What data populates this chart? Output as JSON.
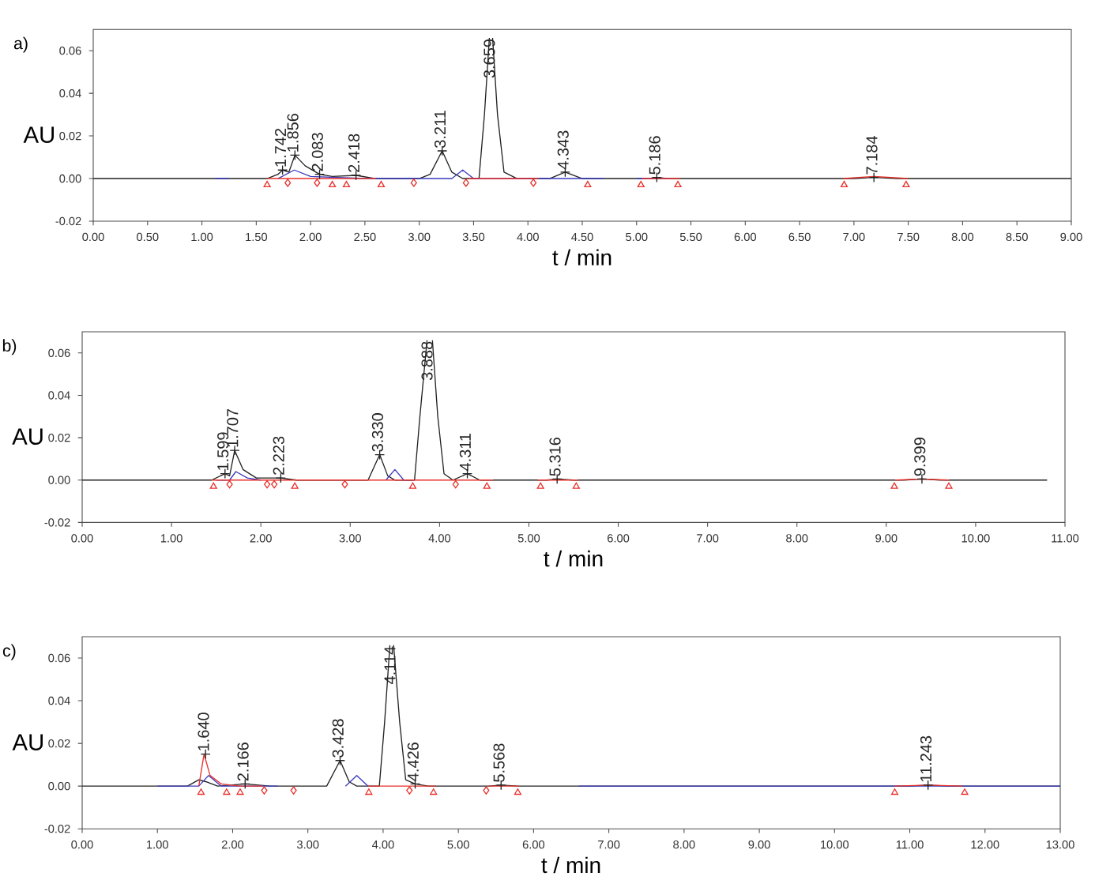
{
  "chart_data": [
    {
      "type": "line",
      "title": "a)",
      "xlabel": "t / min",
      "ylabel": "AU",
      "xlim": [
        0,
        9
      ],
      "ylim": [
        -0.02,
        0.07
      ],
      "xticks": [
        {
          "value": 0,
          "label": "0.00"
        },
        {
          "value": 0.5,
          "label": "0.50"
        },
        {
          "value": 1,
          "label": "1.00"
        },
        {
          "value": 1.5,
          "label": "1.50"
        },
        {
          "value": 2,
          "label": "2.00"
        },
        {
          "value": 2.5,
          "label": "2.50"
        },
        {
          "value": 3,
          "label": "3.00"
        },
        {
          "value": 3.5,
          "label": "3.50"
        },
        {
          "value": 4,
          "label": "4.00"
        },
        {
          "value": 4.5,
          "label": "4.50"
        },
        {
          "value": 5,
          "label": "5.00"
        },
        {
          "value": 5.5,
          "label": "5.50"
        },
        {
          "value": 6,
          "label": "6.00"
        },
        {
          "value": 6.5,
          "label": "6.50"
        },
        {
          "value": 7,
          "label": "7.00"
        },
        {
          "value": 7.5,
          "label": "7.50"
        },
        {
          "value": 8,
          "label": "8.00"
        },
        {
          "value": 8.5,
          "label": "8.50"
        },
        {
          "value": 9,
          "label": "9.00"
        }
      ],
      "yticks": [
        {
          "value": -0.02,
          "label": "-0.02"
        },
        {
          "value": 0,
          "label": "0.00"
        },
        {
          "value": 0.02,
          "label": "0.02"
        },
        {
          "value": 0.04,
          "label": "0.04"
        },
        {
          "value": 0.06,
          "label": "0.06"
        }
      ],
      "series": [
        {
          "color": "#222222",
          "x": [
            0,
            1.6,
            1.7,
            1.742,
            1.8,
            1.856,
            1.95,
            2.083,
            2.2,
            2.418,
            2.6,
            3.0,
            3.1,
            3.211,
            3.3,
            3.4,
            3.55,
            3.6,
            3.645,
            3.66,
            3.675,
            3.72,
            3.78,
            3.9,
            4.2,
            4.343,
            4.5,
            5.1,
            5.186,
            5.3,
            7.0,
            7.184,
            7.4,
            9
          ],
          "values": [
            0,
            0,
            0.002,
            0.004,
            0.003,
            0.011,
            0.006,
            0.002,
            0.001,
            0.0015,
            0,
            0,
            0.002,
            0.013,
            0.003,
            0,
            0,
            0.03,
            0.066,
            null,
            0.066,
            0.03,
            0.003,
            0,
            0,
            0.003,
            0,
            0,
            0.0005,
            0,
            0,
            0.0005,
            0,
            0
          ]
        },
        {
          "color": "#3b3bbf",
          "x": [
            1.12,
            1.25,
            1.26,
            1.7,
            1.85,
            2.0,
            2.5,
            2.7,
            3.3,
            3.4,
            3.5,
            4.2,
            4.7,
            4.71,
            5.0,
            5.3
          ],
          "values": [
            0,
            0,
            null,
            0,
            0.004,
            0.001,
            0,
            0,
            0,
            0.004,
            0,
            0,
            0,
            null,
            0,
            0
          ]
        },
        {
          "color": "#e8302a",
          "x": [
            1.6,
            2.6,
            2.61,
            3.45,
            4.1,
            4.11,
            5.05,
            5.4,
            5.41,
            6.9,
            7.184,
            7.5
          ],
          "values": [
            0,
            0,
            null,
            0,
            0,
            null,
            0,
            0,
            null,
            0,
            0.001,
            0
          ]
        },
        {
          "type": "scatter",
          "marker": "triangle",
          "color": "#e8302a",
          "x": [
            1.6,
            2.2,
            2.33,
            2.65,
            4.55,
            5.04,
            5.38,
            6.91,
            7.48
          ],
          "values": [
            -0.003,
            -0.003,
            -0.003,
            -0.003,
            -0.003,
            -0.003,
            -0.003,
            -0.003,
            -0.003
          ]
        },
        {
          "type": "scatter",
          "marker": "diamond",
          "color": "#e8302a",
          "x": [
            1.79,
            2.06,
            2.95,
            3.43,
            4.05
          ],
          "values": [
            -0.002,
            -0.002,
            -0.002,
            -0.002,
            -0.002
          ]
        },
        {
          "type": "scatter",
          "marker": "cross",
          "color": "#222222",
          "x": [
            1.742,
            1.856,
            2.083,
            2.418,
            3.211,
            4.343,
            5.186,
            7.184
          ],
          "values": [
            0.004,
            0.011,
            0.002,
            0.0015,
            0.013,
            0.003,
            0.0005,
            0.0005
          ]
        }
      ],
      "annotations": [
        {
          "text": "1.742",
          "x": 1.742,
          "y": 0.004
        },
        {
          "text": "1.856",
          "x": 1.856,
          "y": 0.011
        },
        {
          "text": "2.083",
          "x": 2.083,
          "y": 0.002
        },
        {
          "text": "2.418",
          "x": 2.418,
          "y": 0.0015
        },
        {
          "text": "3.211",
          "x": 3.211,
          "y": 0.013
        },
        {
          "text": "3.659",
          "x": 3.645,
          "y": 0.066
        },
        {
          "text": "4.343",
          "x": 4.343,
          "y": 0.003
        },
        {
          "text": "5.186",
          "x": 5.186,
          "y": 0.0005
        },
        {
          "text": "7.184",
          "x": 7.184,
          "y": 0.0005
        }
      ]
    },
    {
      "type": "line",
      "title": "b)",
      "xlabel": "t / min",
      "ylabel": "AU",
      "xlim": [
        0,
        11
      ],
      "ylim": [
        -0.02,
        0.07
      ],
      "xticks": [
        {
          "value": 0,
          "label": "0.00"
        },
        {
          "value": 1,
          "label": "1.00"
        },
        {
          "value": 2,
          "label": "2.00"
        },
        {
          "value": 3,
          "label": "3.00"
        },
        {
          "value": 4,
          "label": "4.00"
        },
        {
          "value": 5,
          "label": "5.00"
        },
        {
          "value": 6,
          "label": "6.00"
        },
        {
          "value": 7,
          "label": "7.00"
        },
        {
          "value": 8,
          "label": "8.00"
        },
        {
          "value": 9,
          "label": "9.00"
        },
        {
          "value": 10,
          "label": "10.00"
        },
        {
          "value": 11,
          "label": "11.00"
        }
      ],
      "yticks": [
        {
          "value": -0.02,
          "label": "-0.02"
        },
        {
          "value": 0,
          "label": "0.00"
        },
        {
          "value": 0.02,
          "label": "0.02"
        },
        {
          "value": 0.04,
          "label": "0.04"
        },
        {
          "value": 0.06,
          "label": "0.06"
        }
      ],
      "series": [
        {
          "color": "#222222",
          "x": [
            0,
            1.45,
            1.599,
            1.65,
            1.707,
            1.8,
            1.95,
            2.223,
            2.4,
            3.2,
            3.33,
            3.42,
            3.5,
            3.72,
            3.78,
            3.86,
            3.888,
            3.92,
            3.98,
            4.05,
            4.15,
            4.311,
            4.45,
            5.2,
            5.316,
            5.5,
            9.2,
            9.399,
            9.6,
            10.8
          ],
          "values": [
            0,
            0,
            0.003,
            0.002,
            0.014,
            0.005,
            0.001,
            0.001,
            0,
            0,
            0.012,
            0.002,
            0,
            0,
            0.03,
            0.066,
            null,
            0.066,
            0.03,
            0.003,
            0,
            0.003,
            0,
            0,
            0.0005,
            0,
            0,
            0.0005,
            0,
            0
          ]
        },
        {
          "color": "#3b3bbf",
          "x": [
            1.5,
            1.65,
            1.72,
            1.85,
            2.0,
            2.01,
            3.4,
            3.5,
            3.6,
            3.7
          ],
          "values": [
            0,
            0,
            0.004,
            0.001,
            0,
            null,
            0,
            0.005,
            0,
            0
          ]
        },
        {
          "color": "#e8302a",
          "x": [
            1.45,
            4.6,
            4.61,
            5.1,
            5.55,
            5.56,
            9.1,
            9.399,
            9.7
          ],
          "values": [
            0,
            0,
            null,
            0,
            0,
            null,
            0,
            0.0005,
            0
          ]
        },
        {
          "type": "scatter",
          "marker": "triangle",
          "color": "#e8302a",
          "x": [
            1.47,
            2.38,
            3.7,
            4.53,
            5.13,
            5.53,
            9.09,
            9.7
          ],
          "values": [
            -0.003,
            -0.003,
            -0.003,
            -0.003,
            -0.003,
            -0.003,
            -0.003,
            -0.003
          ]
        },
        {
          "type": "scatter",
          "marker": "diamond",
          "color": "#e8302a",
          "x": [
            1.65,
            2.07,
            2.15,
            2.94,
            4.18
          ],
          "values": [
            -0.002,
            -0.002,
            -0.002,
            -0.002,
            -0.002
          ]
        },
        {
          "type": "scatter",
          "marker": "cross",
          "color": "#222222",
          "x": [
            1.599,
            1.707,
            2.223,
            3.33,
            4.311,
            5.316,
            9.399
          ],
          "values": [
            0.003,
            0.014,
            0.001,
            0.012,
            0.003,
            0.0005,
            0.0005
          ]
        }
      ],
      "annotations": [
        {
          "text": "1.599",
          "x": 1.599,
          "y": 0.003
        },
        {
          "text": "1.707",
          "x": 1.707,
          "y": 0.014
        },
        {
          "text": "2.223",
          "x": 2.223,
          "y": 0.001
        },
        {
          "text": "3.330",
          "x": 3.33,
          "y": 0.012
        },
        {
          "text": "3.888",
          "x": 3.86,
          "y": 0.066
        },
        {
          "text": "4.311",
          "x": 4.311,
          "y": 0.003
        },
        {
          "text": "5.316",
          "x": 5.316,
          "y": 0.0005
        },
        {
          "text": "9.399",
          "x": 9.399,
          "y": 0.0005
        }
      ]
    },
    {
      "type": "line",
      "title": "c)",
      "xlabel": "t / min",
      "ylabel": "AU",
      "xlim": [
        0,
        13
      ],
      "ylim": [
        -0.02,
        0.07
      ],
      "xticks": [
        {
          "value": 0,
          "label": "0.00"
        },
        {
          "value": 1,
          "label": "1.00"
        },
        {
          "value": 2,
          "label": "2.00"
        },
        {
          "value": 3,
          "label": "3.00"
        },
        {
          "value": 4,
          "label": "4.00"
        },
        {
          "value": 5,
          "label": "5.00"
        },
        {
          "value": 6,
          "label": "6.00"
        },
        {
          "value": 7,
          "label": "7.00"
        },
        {
          "value": 8,
          "label": "8.00"
        },
        {
          "value": 9,
          "label": "9.00"
        },
        {
          "value": 10,
          "label": "10.00"
        },
        {
          "value": 11,
          "label": "11.00"
        },
        {
          "value": 12,
          "label": "12.00"
        },
        {
          "value": 13,
          "label": "13.00"
        }
      ],
      "yticks": [
        {
          "value": -0.02,
          "label": "-0.02"
        },
        {
          "value": 0,
          "label": "0.00"
        },
        {
          "value": 0.02,
          "label": "0.02"
        },
        {
          "value": 0.04,
          "label": "0.04"
        },
        {
          "value": 0.06,
          "label": "0.06"
        }
      ],
      "series": [
        {
          "color": "#222222",
          "x": [
            0,
            1.4,
            1.55,
            1.65,
            1.8,
            2.166,
            2.5,
            3.25,
            3.428,
            3.55,
            3.65,
            3.95,
            4.02,
            4.09,
            4.115,
            4.14,
            4.22,
            4.3,
            4.426,
            4.6,
            5.4,
            5.568,
            5.8,
            11.0,
            11.243,
            11.5,
            13
          ],
          "values": [
            0,
            0,
            0.003,
            0.002,
            0,
            0.001,
            0,
            0,
            0.012,
            0.002,
            0,
            0,
            0.03,
            0.066,
            null,
            0.066,
            0.03,
            0.003,
            0.001,
            0,
            0,
            0.0005,
            0,
            0,
            0.0005,
            0,
            0
          ]
        },
        {
          "color": "#3b3bbf",
          "x": [
            1.0,
            1.55,
            1.68,
            1.85,
            2.6,
            2.61,
            3.5,
            3.65,
            3.8,
            3.81,
            6.6,
            13
          ],
          "values": [
            0,
            0,
            0.005,
            0,
            0,
            null,
            0,
            0.005,
            0,
            null,
            0,
            0
          ]
        },
        {
          "color": "#e8302a",
          "x": [
            1.55,
            1.62,
            1.7,
            1.85,
            2.1,
            2.4,
            2.41,
            3.8,
            4.7,
            4.71,
            5.4,
            5.8,
            5.81,
            10.8,
            11.243,
            11.7
          ],
          "values": [
            0,
            0.015,
            0.005,
            0.001,
            0,
            0,
            null,
            0,
            0,
            null,
            0,
            0,
            null,
            0,
            0.0005,
            0
          ]
        },
        {
          "type": "scatter",
          "marker": "triangle",
          "color": "#e8302a",
          "x": [
            1.58,
            1.92,
            2.1,
            3.81,
            4.67,
            5.79,
            10.8,
            11.73
          ],
          "values": [
            -0.003,
            -0.003,
            -0.003,
            -0.003,
            -0.003,
            -0.003,
            -0.003,
            -0.003
          ]
        },
        {
          "type": "scatter",
          "marker": "diamond",
          "color": "#e8302a",
          "x": [
            2.42,
            2.81,
            4.35,
            5.37
          ],
          "values": [
            -0.002,
            -0.002,
            -0.002,
            -0.002
          ]
        },
        {
          "type": "scatter",
          "marker": "cross",
          "color": "#222222",
          "x": [
            1.64,
            2.166,
            3.428,
            4.426,
            5.568,
            11.243
          ],
          "values": [
            0.015,
            0.001,
            0.012,
            0.001,
            0.0005,
            0.0005
          ]
        }
      ],
      "annotations": [
        {
          "text": "1.640",
          "x": 1.64,
          "y": 0.015
        },
        {
          "text": "2.166",
          "x": 2.166,
          "y": 0.001
        },
        {
          "text": "3.428",
          "x": 3.428,
          "y": 0.012
        },
        {
          "text": "4.114",
          "x": 4.09,
          "y": 0.066
        },
        {
          "text": "4.426",
          "x": 4.426,
          "y": 0.001
        },
        {
          "text": "5.568",
          "x": 5.568,
          "y": 0.0005
        },
        {
          "text": "11.243",
          "x": 11.243,
          "y": 0.0005
        }
      ]
    }
  ]
}
